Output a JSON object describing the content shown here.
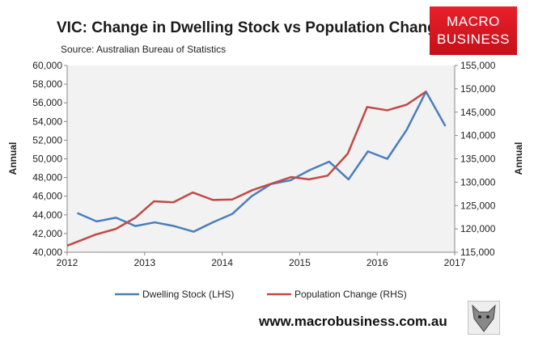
{
  "chart_data": {
    "type": "line",
    "title": "VIC: Change in Dwelling Stock vs Population Change",
    "subtitle": "Source: Australian Bureau of Statistics",
    "ylabel": "Annual",
    "y2label": "Annual",
    "xlim": [
      2012,
      2017
    ],
    "ylim": [
      40000,
      60000
    ],
    "y2lim": [
      115000,
      155000
    ],
    "xticks": [
      "2012",
      "2013",
      "2014",
      "2015",
      "2016",
      "2017"
    ],
    "yticks": [
      "40,000",
      "42,000",
      "44,000",
      "46,000",
      "48,000",
      "50,000",
      "52,000",
      "54,000",
      "56,000",
      "58,000",
      "60,000"
    ],
    "y2ticks": [
      "115,000",
      "120,000",
      "125,000",
      "130,000",
      "135,000",
      "140,000",
      "145,000",
      "150,000",
      "155,000"
    ],
    "grid": false,
    "legend_placement": "bottom",
    "series": [
      {
        "name": "Dwelling Stock (LHS)",
        "axis": "left",
        "color": "#4a7ebb",
        "x": [
          2012.13,
          2012.38,
          2012.63,
          2012.88,
          2013.13,
          2013.38,
          2013.63,
          2013.88,
          2014.13,
          2014.38,
          2014.63,
          2014.88,
          2015.13,
          2015.38,
          2015.63,
          2015.88,
          2016.13,
          2016.38,
          2016.63,
          2016.88
        ],
        "values": [
          44200,
          43300,
          43700,
          42800,
          43200,
          42800,
          42200,
          43200,
          44100,
          46000,
          47300,
          47700,
          48800,
          49700,
          47800,
          50800,
          50000,
          53100,
          57200,
          53500
        ]
      },
      {
        "name": "Population Change (RHS)",
        "axis": "right",
        "color": "#be4b48",
        "x": [
          2012.0,
          2012.37,
          2012.63,
          2012.88,
          2013.12,
          2013.37,
          2013.62,
          2013.88,
          2014.13,
          2014.39,
          2014.64,
          2014.89,
          2015.12,
          2015.36,
          2015.62,
          2015.87,
          2016.13,
          2016.38,
          2016.63
        ],
        "values": [
          116400,
          118800,
          120000,
          122400,
          125900,
          125700,
          127800,
          126200,
          126300,
          128300,
          129700,
          131100,
          130600,
          131400,
          136100,
          146100,
          145400,
          146600,
          149400
        ]
      }
    ]
  },
  "logo": {
    "line1": "MACRO",
    "line2": "BUSINESS"
  },
  "footer": {
    "url": "www.macrobusiness.com.au"
  }
}
